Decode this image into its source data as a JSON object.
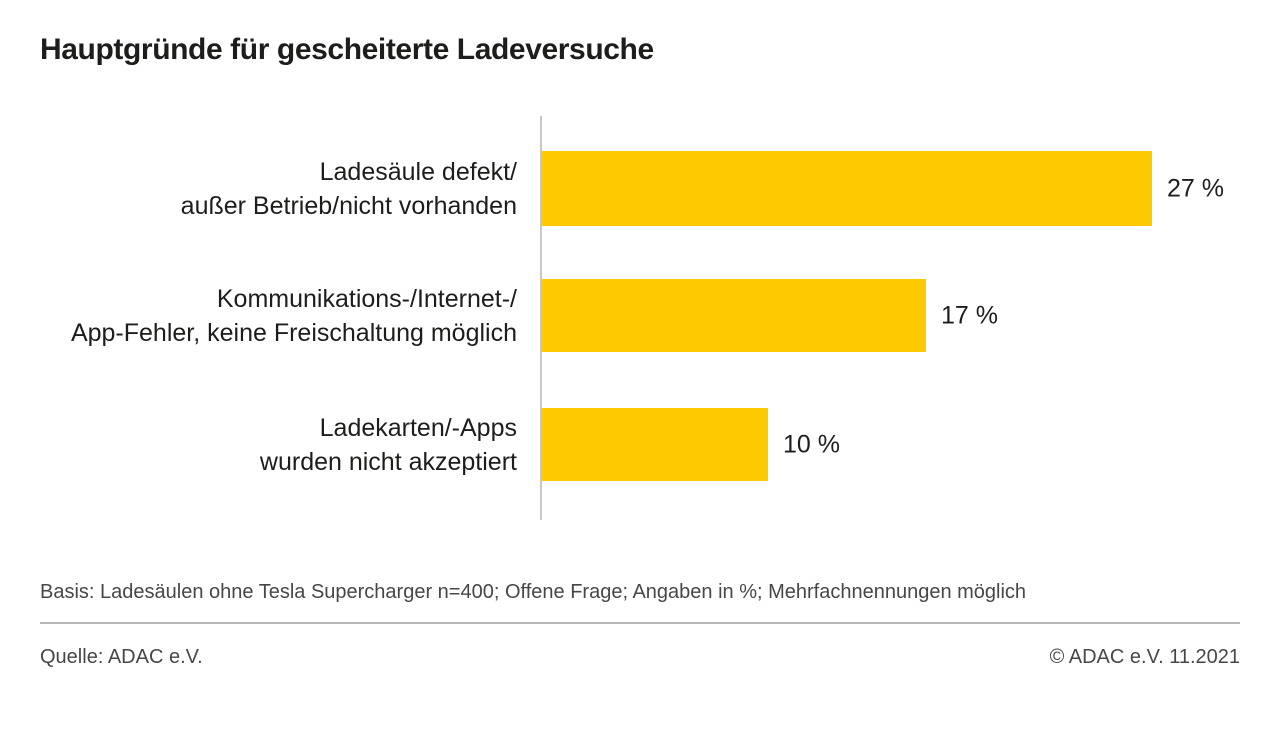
{
  "page": {
    "title": "Hauptgründe für gescheiterte Ladeversuche"
  },
  "chart_data": {
    "type": "bar",
    "orientation": "horizontal",
    "title": "Hauptgründe für gescheiterte Ladeversuche",
    "categories": [
      "Ladesäule defekt/ außer Betrieb/nicht vorhanden",
      "Kommunikations-/Internet-/ App-Fehler, keine Freischaltung möglich",
      "Ladekarten/-Apps wurden nicht akzeptiert"
    ],
    "category_lines": [
      [
        "Ladesäule defekt/",
        "außer Betrieb/nicht vorhanden"
      ],
      [
        "Kommunikations-/Internet-/",
        "App-Fehler, keine Freischaltung möglich"
      ],
      [
        "Ladekarten/-Apps",
        "wurden nicht akzeptiert"
      ]
    ],
    "values": [
      27,
      17,
      10
    ],
    "value_labels": [
      "27 %",
      "17 %",
      "10 %"
    ],
    "unit": "%",
    "xlim": [
      0,
      27
    ],
    "grid": false,
    "legend": false,
    "bar_color": "#FDC900",
    "axis_color": "#C8C8C8",
    "text_color": "#1D1D1B"
  },
  "footer": {
    "basis": "Basis: Ladesäulen ohne Tesla Supercharger n=400; Offene Frage; Angaben in %; Mehrfachnennungen möglich",
    "source": "Quelle: ADAC e.V.",
    "copyright": "© ADAC e.V. 11.2021"
  }
}
